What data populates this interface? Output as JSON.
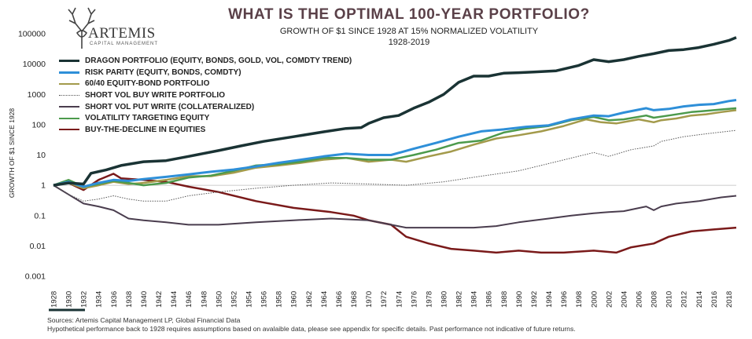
{
  "header": {
    "brand": "ARTEMIS",
    "brand_sub": "CAPITAL MANAGEMENT",
    "title": "WHAT IS THE OPTIMAL 100-YEAR PORTFOLIO?",
    "subtitle_line1": "GROWTH OF $1 SINCE 1928 AT 15% NORMALIZED VOLATILITY",
    "subtitle_line2": "1928-2019"
  },
  "footer": {
    "source_line1": "Sources: Artemis Capital Management LP, Global Financial Data",
    "source_line2": "Hypothetical performance back to 1928 requires assumptions based on avalaible data, please see appendix for specific details. Past performance not indicative of future returns."
  },
  "chart_data": {
    "type": "line",
    "title": "WHAT IS THE OPTIMAL 100-YEAR PORTFOLIO?",
    "ylabel": "GROWTH OF $1 SINCE 1928",
    "xlabel": "",
    "y_scale": "log",
    "ylim": [
      0.001,
      100000
    ],
    "xlim": [
      1928,
      2019
    ],
    "y_ticks": [
      "0.001",
      "0.01",
      "0.1",
      "1",
      "10",
      "100",
      "1000",
      "10000",
      "100000"
    ],
    "x_ticks": [
      "1928",
      "1930",
      "1932",
      "1934",
      "1936",
      "1938",
      "1940",
      "1942",
      "1944",
      "1946",
      "1948",
      "1950",
      "1952",
      "1954",
      "1956",
      "1958",
      "1960",
      "1962",
      "1964",
      "1966",
      "1968",
      "1970",
      "1972",
      "1974",
      "1976",
      "1978",
      "1980",
      "1982",
      "1984",
      "1986",
      "1988",
      "1990",
      "1992",
      "1994",
      "1996",
      "1998",
      "2000",
      "2002",
      "2004",
      "2006",
      "2008",
      "2010",
      "2012",
      "2014",
      "2016",
      "2018"
    ],
    "legend_position": "upper-left",
    "grid": false,
    "reference_line_y": 1,
    "series": [
      {
        "name": "DRAGON PORTFOLIO (EQUITY, BONDS, GOLD, VOL, COMDTY TREND)",
        "color": "#1a3334",
        "width": 3.5,
        "style": "solid",
        "x": [
          1928,
          1930,
          1932,
          1933,
          1935,
          1937,
          1940,
          1943,
          1946,
          1950,
          1953,
          1956,
          1960,
          1964,
          1967,
          1969,
          1970,
          1972,
          1974,
          1976,
          1978,
          1980,
          1982,
          1984,
          1986,
          1988,
          1990,
          1992,
          1995,
          1998,
          2000,
          2002,
          2004,
          2006,
          2008,
          2010,
          2012,
          2014,
          2016,
          2018,
          2019
        ],
        "y": [
          1,
          1.2,
          1.1,
          2.5,
          3.2,
          4.5,
          6,
          6.5,
          9,
          14,
          20,
          28,
          40,
          58,
          75,
          80,
          110,
          170,
          200,
          350,
          550,
          1000,
          2500,
          4000,
          4000,
          5000,
          5200,
          5500,
          6000,
          9000,
          14000,
          12000,
          14000,
          18000,
          22000,
          28000,
          30000,
          35000,
          45000,
          60000,
          75000
        ]
      },
      {
        "name": "RISK PARITY (EQUITY, BONDS, COMDTY)",
        "color": "#2e8fd8",
        "width": 3,
        "style": "solid",
        "x": [
          1928,
          1930,
          1932,
          1934,
          1936,
          1938,
          1940,
          1943,
          1946,
          1949,
          1952,
          1955,
          1958,
          1961,
          1964,
          1967,
          1970,
          1973,
          1976,
          1979,
          1982,
          1985,
          1988,
          1991,
          1994,
          1997,
          2000,
          2002,
          2004,
          2007,
          2008,
          2010,
          2012,
          2014,
          2016,
          2018,
          2019
        ],
        "y": [
          1,
          1.3,
          0.9,
          1.2,
          1.5,
          1.4,
          1.6,
          1.9,
          2.3,
          2.8,
          3.3,
          4.2,
          5.5,
          7,
          9,
          11,
          10,
          10,
          16,
          25,
          40,
          60,
          70,
          85,
          95,
          150,
          200,
          190,
          250,
          350,
          300,
          330,
          400,
          450,
          480,
          600,
          650
        ]
      },
      {
        "name": "60/40 EQUITY-BOND PORTFOLIO",
        "color": "#a39a4b",
        "width": 2.5,
        "style": "solid",
        "x": [
          1928,
          1930,
          1932,
          1934,
          1936,
          1938,
          1940,
          1943,
          1946,
          1949,
          1952,
          1955,
          1958,
          1961,
          1964,
          1967,
          1970,
          1973,
          1975,
          1978,
          1981,
          1984,
          1987,
          1990,
          1993,
          1996,
          1999,
          2001,
          2003,
          2006,
          2008,
          2009,
          2011,
          2013,
          2015,
          2017,
          2019
        ],
        "y": [
          1,
          1.2,
          0.8,
          1,
          1.3,
          1.1,
          1.2,
          1.5,
          2,
          2,
          2.6,
          3.8,
          4.5,
          5.5,
          7,
          8,
          6,
          7,
          6,
          9,
          13,
          22,
          35,
          45,
          60,
          90,
          150,
          120,
          110,
          150,
          120,
          140,
          160,
          200,
          220,
          260,
          300
        ]
      },
      {
        "name": "SHORT VOL BUY WRITE PORTFOLIO",
        "color": "#555555",
        "width": 1,
        "style": "dotted",
        "x": [
          1928,
          1930,
          1932,
          1934,
          1936,
          1938,
          1940,
          1943,
          1946,
          1950,
          1955,
          1960,
          1965,
          1970,
          1975,
          1980,
          1985,
          1990,
          1995,
          2000,
          2002,
          2005,
          2008,
          2009,
          2012,
          2015,
          2019
        ],
        "y": [
          1,
          0.5,
          0.3,
          0.35,
          0.45,
          0.35,
          0.3,
          0.3,
          0.45,
          0.6,
          0.8,
          1,
          1.2,
          1.1,
          1,
          1.3,
          2,
          3,
          6,
          12,
          9,
          15,
          20,
          28,
          40,
          50,
          65
        ]
      },
      {
        "name": "SHORT VOL PUT WRITE (COLLATERALIZED)",
        "color": "#4a3d4e",
        "width": 2,
        "style": "solid",
        "x": [
          1928,
          1930,
          1932,
          1934,
          1936,
          1938,
          1940,
          1943,
          1946,
          1950,
          1955,
          1960,
          1965,
          1970,
          1973,
          1975,
          1978,
          1981,
          1984,
          1987,
          1990,
          1994,
          1997,
          2000,
          2002,
          2004,
          2007,
          2008,
          2009,
          2011,
          2014,
          2017,
          2019
        ],
        "y": [
          1,
          0.5,
          0.25,
          0.2,
          0.15,
          0.08,
          0.07,
          0.06,
          0.05,
          0.05,
          0.06,
          0.07,
          0.08,
          0.07,
          0.05,
          0.04,
          0.04,
          0.04,
          0.04,
          0.045,
          0.06,
          0.08,
          0.1,
          0.12,
          0.13,
          0.14,
          0.2,
          0.15,
          0.2,
          0.25,
          0.3,
          0.4,
          0.45
        ]
      },
      {
        "name": "VOLATILITY TARGETING EQUITY",
        "color": "#4c9a4c",
        "width": 2.5,
        "style": "solid",
        "x": [
          1928,
          1930,
          1932,
          1934,
          1936,
          1938,
          1940,
          1943,
          1946,
          1949,
          1952,
          1955,
          1958,
          1961,
          1964,
          1967,
          1970,
          1973,
          1976,
          1979,
          1982,
          1985,
          1988,
          1991,
          1994,
          1997,
          2000,
          2002,
          2004,
          2007,
          2008,
          2010,
          2013,
          2016,
          2019
        ],
        "y": [
          1,
          1.5,
          0.9,
          1.1,
          1.4,
          1.2,
          1,
          1.2,
          1.8,
          2.1,
          3,
          4.5,
          5,
          6,
          8,
          8,
          7,
          7,
          10,
          15,
          25,
          30,
          55,
          75,
          90,
          140,
          180,
          140,
          150,
          200,
          170,
          200,
          260,
          300,
          350
        ]
      },
      {
        "name": "BUY-THE-DECLINE IN EQUITIES",
        "color": "#7a1a1a",
        "width": 2.5,
        "style": "solid",
        "x": [
          1928,
          1930,
          1932,
          1934,
          1936,
          1937,
          1940,
          1943,
          1946,
          1950,
          1955,
          1960,
          1965,
          1968,
          1970,
          1973,
          1975,
          1978,
          1981,
          1984,
          1987,
          1990,
          1993,
          1996,
          2000,
          2003,
          2005,
          2008,
          2010,
          2013,
          2016,
          2019
        ],
        "y": [
          1,
          1.2,
          0.7,
          1.5,
          2.4,
          1.7,
          1.5,
          1.3,
          0.9,
          0.6,
          0.3,
          0.18,
          0.13,
          0.1,
          0.07,
          0.05,
          0.02,
          0.012,
          0.008,
          0.007,
          0.006,
          0.007,
          0.006,
          0.006,
          0.007,
          0.006,
          0.009,
          0.012,
          0.02,
          0.03,
          0.035,
          0.04
        ]
      }
    ]
  }
}
